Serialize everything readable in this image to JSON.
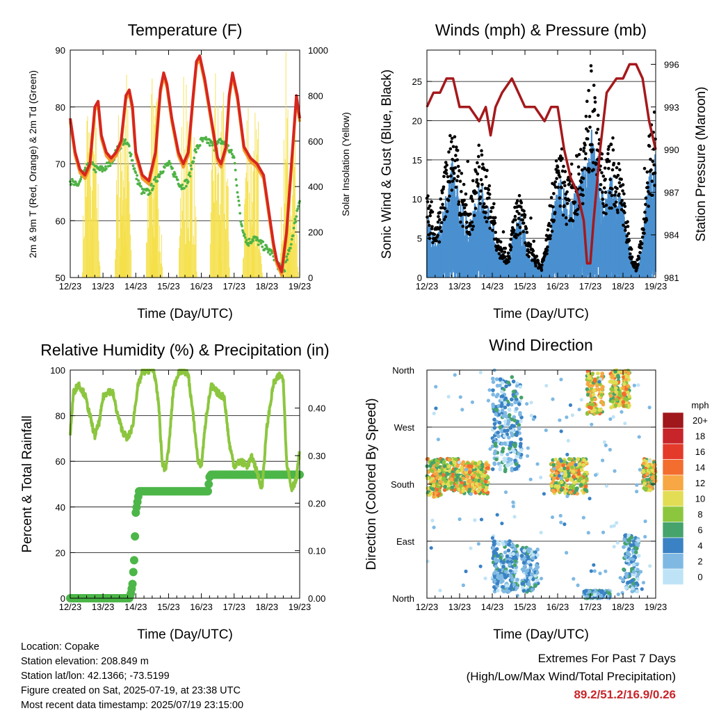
{
  "x_tick_labels": [
    "12/23",
    "13/23",
    "14/23",
    "15/23",
    "16/23",
    "17/23",
    "18/23",
    "19/23"
  ],
  "chart_data": [
    {
      "type": "line",
      "title": "Temperature (F)",
      "xlabel": "Time (Day/UTC)",
      "ylabel": "2m & 9m T (Red, Orange) & 2m Td (Green)",
      "y2label": "Solar Insolation (Yellow)",
      "ylim": [
        50,
        90
      ],
      "y_ticks": [
        50,
        60,
        70,
        80,
        90
      ],
      "y2lim": [
        0,
        1000
      ],
      "y2_ticks": [
        0,
        200,
        400,
        600,
        800,
        1000
      ],
      "xlim": [
        12,
        19
      ],
      "colors": {
        "t2m": "#d7261f",
        "t9m": "#f39a2a",
        "td": "#4eb345",
        "solar": "#f5e04a"
      },
      "series": [
        {
          "key": "t2m",
          "x": [
            12.0,
            12.15,
            12.3,
            12.45,
            12.6,
            12.75,
            12.85,
            12.95,
            13.1,
            13.25,
            13.4,
            13.55,
            13.7,
            13.8,
            13.9,
            14.0,
            14.2,
            14.4,
            14.6,
            14.75,
            14.85,
            14.95,
            15.1,
            15.3,
            15.45,
            15.6,
            15.75,
            15.85,
            15.95,
            16.1,
            16.3,
            16.5,
            16.6,
            16.75,
            16.85,
            16.95,
            17.1,
            17.3,
            17.5,
            17.7,
            17.9,
            18.05,
            18.2,
            18.3,
            18.45,
            18.6,
            18.75,
            18.9,
            19.0
          ],
          "y": [
            78,
            72,
            69,
            68,
            70,
            80,
            81,
            75,
            72,
            71,
            72,
            74,
            82,
            83,
            80,
            72,
            68,
            67,
            72,
            83,
            86,
            84,
            78,
            72,
            70,
            72,
            82,
            88,
            89,
            85,
            78,
            71,
            70,
            73,
            82,
            86,
            82,
            73,
            71,
            70,
            68,
            62,
            56,
            53,
            51,
            58,
            70,
            82,
            78
          ]
        },
        {
          "key": "td",
          "x": [
            12.0,
            12.2,
            12.4,
            12.6,
            12.8,
            13.0,
            13.2,
            13.4,
            13.6,
            13.8,
            14.0,
            14.2,
            14.4,
            14.6,
            14.8,
            15.0,
            15.2,
            15.4,
            15.6,
            15.8,
            16.0,
            16.2,
            16.4,
            16.6,
            16.8,
            17.0,
            17.2,
            17.4,
            17.6,
            17.8,
            18.0,
            18.2,
            18.35,
            18.5,
            18.7,
            18.9,
            19.0
          ],
          "y": [
            67,
            66,
            68,
            70,
            69,
            69,
            70,
            72,
            74,
            73,
            68,
            65,
            65,
            67,
            69,
            70,
            68,
            66,
            67,
            72,
            74,
            74,
            73,
            74,
            73,
            71,
            60,
            56,
            57,
            56,
            55,
            54,
            52,
            51,
            55,
            61,
            64
          ]
        }
      ],
      "solar": {
        "peak_days": [
          12.55,
          12.75,
          13.55,
          13.7,
          14.5,
          14.65,
          15.5,
          15.7,
          16.45,
          16.7,
          17.45,
          17.7,
          18.6,
          18.8
        ],
        "peak_values": [
          900,
          780,
          950,
          1000,
          980,
          860,
          1000,
          900,
          1000,
          880,
          950,
          820,
          1000,
          950
        ]
      }
    },
    {
      "type": "scatter",
      "title": "Winds (mph) & Pressure (mb)",
      "xlabel": "Time (Day/UTC)",
      "ylabel": "Sonic Wind & Gust (Blue, Black)",
      "y2label": "Station Pressure (Maroon)",
      "ylim": [
        0,
        29
      ],
      "y_ticks": [
        0,
        5,
        10,
        15,
        20,
        25
      ],
      "y2lim": [
        981,
        997
      ],
      "y2_ticks": [
        981,
        984,
        987,
        990,
        993,
        996
      ],
      "xlim": [
        12,
        19
      ],
      "colors": {
        "wind": "#4a90d0",
        "gust": "#000000",
        "pressure": "#a5191c"
      },
      "wind_envelope": {
        "x": [
          12.0,
          12.3,
          12.6,
          12.8,
          13.0,
          13.3,
          13.6,
          13.9,
          14.2,
          14.5,
          14.7,
          14.9,
          15.1,
          15.3,
          15.5,
          15.7,
          15.9,
          16.1,
          16.3,
          16.5,
          16.8,
          17.0,
          17.2,
          17.4,
          17.6,
          17.8,
          18.0,
          18.2,
          18.4,
          18.6,
          18.8,
          19.0
        ],
        "y": [
          7,
          4,
          10,
          13,
          9,
          6,
          11,
          8,
          3,
          2,
          6,
          7,
          3,
          2,
          1,
          4,
          9,
          11,
          8,
          9,
          12,
          17,
          14,
          9,
          11,
          10,
          8,
          3,
          1,
          4,
          12,
          14
        ]
      },
      "pressure": {
        "x": [
          12.0,
          12.2,
          12.4,
          12.6,
          12.8,
          13.0,
          13.3,
          13.6,
          13.8,
          13.95,
          14.1,
          14.3,
          14.6,
          14.8,
          15.0,
          15.3,
          15.6,
          15.8,
          16.0,
          16.2,
          16.4,
          16.6,
          16.8,
          16.9,
          17.0,
          17.1,
          17.3,
          17.5,
          17.8,
          18.0,
          18.2,
          18.4,
          18.6,
          18.8,
          19.0
        ],
        "y": [
          993,
          994,
          994,
          995,
          995,
          993,
          993,
          992,
          993,
          991,
          993,
          994,
          995,
          994,
          993,
          993,
          992,
          993,
          993,
          990,
          988,
          987,
          985,
          982,
          982,
          985,
          990,
          994,
          995,
          995,
          996,
          996,
          995,
          992,
          990
        ]
      }
    },
    {
      "type": "line",
      "title": "Relative Humidity (%) & Precipitation (in)",
      "xlabel": "Time (Day/UTC)",
      "ylabel": "Percent & Total Rainfall",
      "ylim": [
        0,
        100
      ],
      "y_ticks": [
        0,
        20,
        40,
        60,
        80,
        100
      ],
      "y2lim": [
        0,
        0.48
      ],
      "y2_ticks": [
        0.0,
        0.1,
        0.2,
        0.3,
        0.4
      ],
      "y2_tick_labels": [
        "0.00",
        "0.10",
        "0.20",
        "0.30",
        "0.40"
      ],
      "xlim": [
        12,
        19
      ],
      "colors": {
        "rh": "#8cc63f",
        "precip": "#4cb648"
      },
      "rh": {
        "x": [
          12.0,
          12.1,
          12.25,
          12.45,
          12.6,
          12.75,
          12.9,
          13.0,
          13.15,
          13.3,
          13.45,
          13.6,
          13.75,
          13.9,
          14.05,
          14.2,
          14.35,
          14.55,
          14.7,
          14.8,
          14.9,
          15.0,
          15.15,
          15.3,
          15.45,
          15.6,
          15.75,
          15.9,
          16.0,
          16.15,
          16.3,
          16.5,
          16.7,
          16.85,
          17.0,
          17.2,
          17.4,
          17.55,
          17.7,
          17.85,
          18.0,
          18.2,
          18.4,
          18.5,
          18.6,
          18.75,
          18.9,
          19.0
        ],
        "y": [
          72,
          90,
          94,
          89,
          80,
          71,
          78,
          88,
          91,
          90,
          80,
          73,
          70,
          75,
          92,
          99,
          100,
          100,
          85,
          60,
          56,
          65,
          92,
          99,
          100,
          98,
          80,
          60,
          58,
          80,
          93,
          90,
          88,
          68,
          58,
          60,
          58,
          62,
          55,
          48,
          75,
          94,
          98,
          96,
          60,
          48,
          52,
          65
        ]
      },
      "precip": {
        "x": [
          12.0,
          13.8,
          13.85,
          13.9,
          13.95,
          14.0,
          14.1,
          15.5,
          16.2,
          16.25,
          16.3,
          17.0,
          18.0,
          19.0
        ],
        "y": [
          0.0,
          0.0,
          0.01,
          0.03,
          0.08,
          0.18,
          0.225,
          0.225,
          0.225,
          0.255,
          0.26,
          0.26,
          0.26,
          0.26
        ]
      }
    },
    {
      "type": "scatter",
      "title": "Wind Direction",
      "xlabel": "Time (Day/UTC)",
      "ylabel": "Direction (Colored By Speed)",
      "y_tick_labels": [
        "North",
        "East",
        "South",
        "West",
        "North"
      ],
      "ylim": [
        0,
        360
      ],
      "xlim": [
        12,
        19
      ],
      "colorbar": {
        "title": "mph",
        "labels": [
          "20+",
          "18",
          "16",
          "14",
          "12",
          "10",
          "8",
          "6",
          "4",
          "2",
          "0"
        ],
        "colors": [
          "#a0171c",
          "#c8252a",
          "#e43a2a",
          "#f36d2f",
          "#f7a743",
          "#e2dd55",
          "#8cc63f",
          "#45a36b",
          "#3a82c4",
          "#7fb9e3",
          "#bfe3f6"
        ]
      },
      "clusters": [
        {
          "x0": 12.0,
          "x1": 12.5,
          "d0": 160,
          "d1": 220
        },
        {
          "x0": 12.5,
          "x1": 13.0,
          "d0": 170,
          "d1": 220
        },
        {
          "x0": 13.0,
          "x1": 13.9,
          "d0": 165,
          "d1": 215
        },
        {
          "x0": 14.0,
          "x1": 14.8,
          "d0": 10,
          "d1": 90
        },
        {
          "x0": 14.0,
          "x1": 14.9,
          "d0": 200,
          "d1": 350
        },
        {
          "x0": 14.9,
          "x1": 15.4,
          "d0": 10,
          "d1": 80
        },
        {
          "x0": 15.8,
          "x1": 16.9,
          "d0": 165,
          "d1": 220
        },
        {
          "x0": 16.9,
          "x1": 17.4,
          "d0": 290,
          "d1": 360
        },
        {
          "x0": 16.8,
          "x1": 17.6,
          "d0": 0,
          "d1": 12
        },
        {
          "x0": 17.6,
          "x1": 18.2,
          "d0": 300,
          "d1": 360
        },
        {
          "x0": 18.0,
          "x1": 18.5,
          "d0": 10,
          "d1": 100
        },
        {
          "x0": 18.6,
          "x1": 19.0,
          "d0": 170,
          "d1": 220
        }
      ]
    }
  ],
  "info": {
    "location": "Location: Copake",
    "elevation": "Station elevation: 208.849 m",
    "latlon": "Station lat/lon: 42.1366; -73.5199",
    "created": "Figure created on Sat, 2025-07-19, at 23:38 UTC",
    "recent": "Most recent data timestamp: 2025/07/19 23:15:00"
  },
  "extremes": {
    "line1": "Extremes For Past 7 Days",
    "line2": "(High/Low/Max Wind/Total Precipitation)",
    "values": "89.2/51.2/16.9/0.26"
  }
}
